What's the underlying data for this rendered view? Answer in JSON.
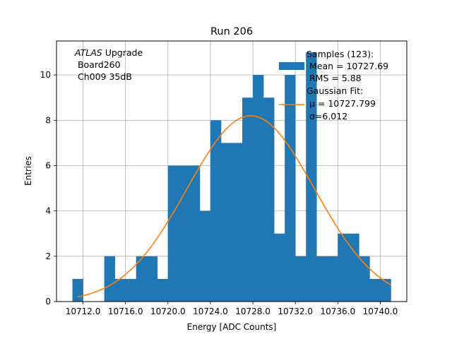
{
  "chart_data": {
    "type": "bar",
    "title": "Run 206",
    "xlabel": "Energy [ADC Counts]",
    "ylabel": "Entries",
    "xlim": [
      10709.5,
      10742.5
    ],
    "ylim": [
      0,
      11.5
    ],
    "grid": true,
    "xticks": [
      10712.0,
      10716.0,
      10720.0,
      10724.0,
      10728.0,
      10732.0,
      10736.0,
      10740.0
    ],
    "xtick_labels": [
      "10712.0",
      "10716.0",
      "10720.0",
      "10724.0",
      "10728.0",
      "10732.0",
      "10736.0",
      "10740.0"
    ],
    "yticks": [
      0,
      2,
      4,
      6,
      8,
      10
    ],
    "ytick_labels": [
      "0",
      "2",
      "4",
      "6",
      "8",
      "10"
    ],
    "histogram": {
      "name": "Samples (123):",
      "color": "#1f77b4",
      "bin_edges": [
        10711.0,
        10712.0,
        10713.0,
        10714.0,
        10715.0,
        10716.0,
        10717.0,
        10718.0,
        10719.0,
        10720.0,
        10721.0,
        10722.0,
        10723.0,
        10724.0,
        10725.0,
        10726.0,
        10727.0,
        10728.0,
        10729.0,
        10730.0,
        10731.0,
        10732.0,
        10733.0,
        10734.0,
        10735.0,
        10736.0,
        10737.0,
        10738.0,
        10739.0,
        10740.0,
        10741.0
      ],
      "counts": [
        1,
        0,
        0,
        2,
        1,
        1,
        2,
        2,
        1,
        6,
        6,
        6,
        4,
        8,
        7,
        7,
        9,
        10,
        9,
        3,
        10,
        2,
        11,
        2,
        2,
        3,
        3,
        2,
        1,
        1
      ]
    },
    "fit": {
      "type": "gaussian",
      "color": "#ff7f0e",
      "mu": 10727.799,
      "sigma": 6.012,
      "amplitude": 8.2,
      "x_range": [
        10711.5,
        10741.0
      ]
    },
    "legend": {
      "placement": "top-right",
      "entries": [
        {
          "type": "patch",
          "color": "#1f77b4",
          "lines": [
            "Samples (123):",
            " Mean = 10727.69",
            " RMS = 5.88"
          ]
        },
        {
          "type": "line",
          "color": "#ff7f0e",
          "lines": [
            "Gaussian Fit:",
            " μ = 10727.799",
            " σ=6.012"
          ]
        }
      ]
    },
    "annotation": {
      "italic": "ATLAS",
      "rest": " Upgrade",
      "lines": [
        " Board260",
        " Ch009 35dB"
      ]
    }
  }
}
